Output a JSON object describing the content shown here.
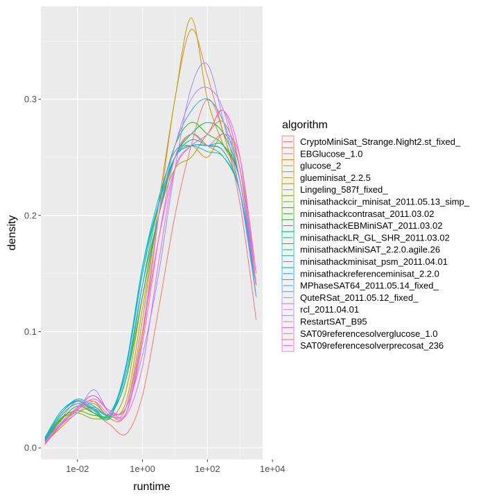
{
  "chart_data": {
    "type": "line",
    "xlabel": "runtime",
    "ylabel": "density",
    "x_scale": "log10",
    "xlim": [
      0.00075,
      5000
    ],
    "ylim": [
      -0.01,
      0.38
    ],
    "x_ticks": [
      {
        "value": 0.01,
        "label": "1e-02"
      },
      {
        "value": 1,
        "label": "1e+00"
      },
      {
        "value": 100,
        "label": "1e+02"
      },
      {
        "value": 10000,
        "label": "1e+04"
      }
    ],
    "y_ticks": [
      {
        "value": 0.0,
        "label": "0.0"
      },
      {
        "value": 0.1,
        "label": "0.1"
      },
      {
        "value": 0.2,
        "label": "0.2"
      },
      {
        "value": 0.3,
        "label": "0.3"
      }
    ],
    "grid": true,
    "legend_position": "right",
    "legend_title": "algorithm",
    "x": [
      0.001,
      0.0032,
      0.01,
      0.032,
      0.1,
      0.316,
      1,
      3.16,
      10,
      31.6,
      100,
      316,
      1000,
      3160
    ],
    "series": [
      {
        "name": "CryptoMiniSat_Strange.Night2.st_fixed_",
        "color": "#F8766D",
        "values": [
          0.003,
          0.025,
          0.04,
          0.03,
          0.02,
          0.012,
          0.045,
          0.12,
          0.2,
          0.26,
          0.3,
          0.27,
          0.21,
          0.11
        ]
      },
      {
        "name": "EBGlucose_1.0",
        "color": "#EA8331",
        "values": [
          0.003,
          0.02,
          0.035,
          0.04,
          0.025,
          0.03,
          0.095,
          0.2,
          0.3,
          0.36,
          0.32,
          0.27,
          0.22,
          0.13
        ]
      },
      {
        "name": "glucose_2",
        "color": "#D89000",
        "values": [
          0.004,
          0.018,
          0.03,
          0.035,
          0.028,
          0.04,
          0.12,
          0.2,
          0.25,
          0.26,
          0.25,
          0.27,
          0.24,
          0.15
        ]
      },
      {
        "name": "glueminisat_2.2.5",
        "color": "#C09B00",
        "values": [
          0.004,
          0.02,
          0.033,
          0.038,
          0.027,
          0.035,
          0.11,
          0.21,
          0.3,
          0.37,
          0.3,
          0.26,
          0.23,
          0.13
        ]
      },
      {
        "name": "Lingeling_587f_fixed_",
        "color": "#A3A500",
        "values": [
          0.008,
          0.028,
          0.038,
          0.03,
          0.025,
          0.05,
          0.13,
          0.2,
          0.24,
          0.25,
          0.27,
          0.28,
          0.24,
          0.14
        ]
      },
      {
        "name": "minisathackcir_minisat_2011.05.13_simp_",
        "color": "#7CAE00",
        "values": [
          0.006,
          0.025,
          0.03,
          0.025,
          0.03,
          0.065,
          0.14,
          0.2,
          0.25,
          0.27,
          0.26,
          0.25,
          0.22,
          0.14
        ]
      },
      {
        "name": "minisathackcontrasat_2011.03.02",
        "color": "#39B600",
        "values": [
          0.007,
          0.026,
          0.032,
          0.028,
          0.03,
          0.06,
          0.14,
          0.21,
          0.26,
          0.28,
          0.27,
          0.26,
          0.23,
          0.14
        ]
      },
      {
        "name": "minisathackEBMiniSAT_2011.03.02",
        "color": "#00BB4E",
        "values": [
          0.006,
          0.024,
          0.036,
          0.03,
          0.028,
          0.06,
          0.13,
          0.2,
          0.25,
          0.27,
          0.28,
          0.27,
          0.23,
          0.14
        ]
      },
      {
        "name": "minisathackLR_GL_SHR_2011.03.02",
        "color": "#00BF7D",
        "values": [
          0.008,
          0.03,
          0.04,
          0.033,
          0.027,
          0.07,
          0.15,
          0.21,
          0.25,
          0.26,
          0.26,
          0.26,
          0.23,
          0.13
        ]
      },
      {
        "name": "minisathackMiniSAT_2.2.0.agile.26",
        "color": "#00C1A3",
        "values": [
          0.009,
          0.032,
          0.04,
          0.032,
          0.026,
          0.07,
          0.155,
          0.21,
          0.25,
          0.265,
          0.26,
          0.255,
          0.22,
          0.14
        ]
      },
      {
        "name": "minisathackminisat_psm_2011.04.01",
        "color": "#00BAE0",
        "values": [
          0.009,
          0.03,
          0.041,
          0.034,
          0.027,
          0.072,
          0.156,
          0.215,
          0.255,
          0.26,
          0.255,
          0.25,
          0.22,
          0.13
        ]
      },
      {
        "name": "minisathackreferenceminisat_2.2.0",
        "color": "#00B0F6",
        "values": [
          0.008,
          0.03,
          0.042,
          0.036,
          0.03,
          0.07,
          0.15,
          0.21,
          0.25,
          0.26,
          0.26,
          0.255,
          0.22,
          0.14
        ]
      },
      {
        "name": "MPhaseSAT64_2011.05.14_fixed_",
        "color": "#35A2FF",
        "values": [
          0.007,
          0.028,
          0.038,
          0.034,
          0.03,
          0.065,
          0.14,
          0.2,
          0.26,
          0.29,
          0.3,
          0.28,
          0.23,
          0.14
        ]
      },
      {
        "name": "QuteRSat_2011.05.12_fixed_",
        "color": "#9590FF",
        "values": [
          0.005,
          0.022,
          0.032,
          0.05,
          0.03,
          0.035,
          0.08,
          0.15,
          0.24,
          0.31,
          0.33,
          0.28,
          0.22,
          0.13
        ]
      },
      {
        "name": "rcl_2011.04.01",
        "color": "#C77CFF",
        "values": [
          0.004,
          0.02,
          0.03,
          0.04,
          0.028,
          0.03,
          0.1,
          0.2,
          0.26,
          0.3,
          0.31,
          0.29,
          0.23,
          0.14
        ]
      },
      {
        "name": "RestartSAT_B95",
        "color": "#E76BF3",
        "values": [
          0.005,
          0.022,
          0.035,
          0.045,
          0.03,
          0.028,
          0.07,
          0.16,
          0.24,
          0.26,
          0.27,
          0.29,
          0.25,
          0.14
        ]
      },
      {
        "name": "SAT09referencesolverglucose_1.0",
        "color": "#FA62DB",
        "values": [
          0.004,
          0.021,
          0.033,
          0.042,
          0.032,
          0.03,
          0.09,
          0.18,
          0.25,
          0.27,
          0.26,
          0.27,
          0.25,
          0.15
        ]
      },
      {
        "name": "SAT09referencesolverprecosat_236",
        "color": "#FF62BC",
        "values": [
          0.003,
          0.02,
          0.034,
          0.045,
          0.032,
          0.035,
          0.1,
          0.18,
          0.24,
          0.26,
          0.27,
          0.29,
          0.24,
          0.14
        ]
      }
    ]
  }
}
